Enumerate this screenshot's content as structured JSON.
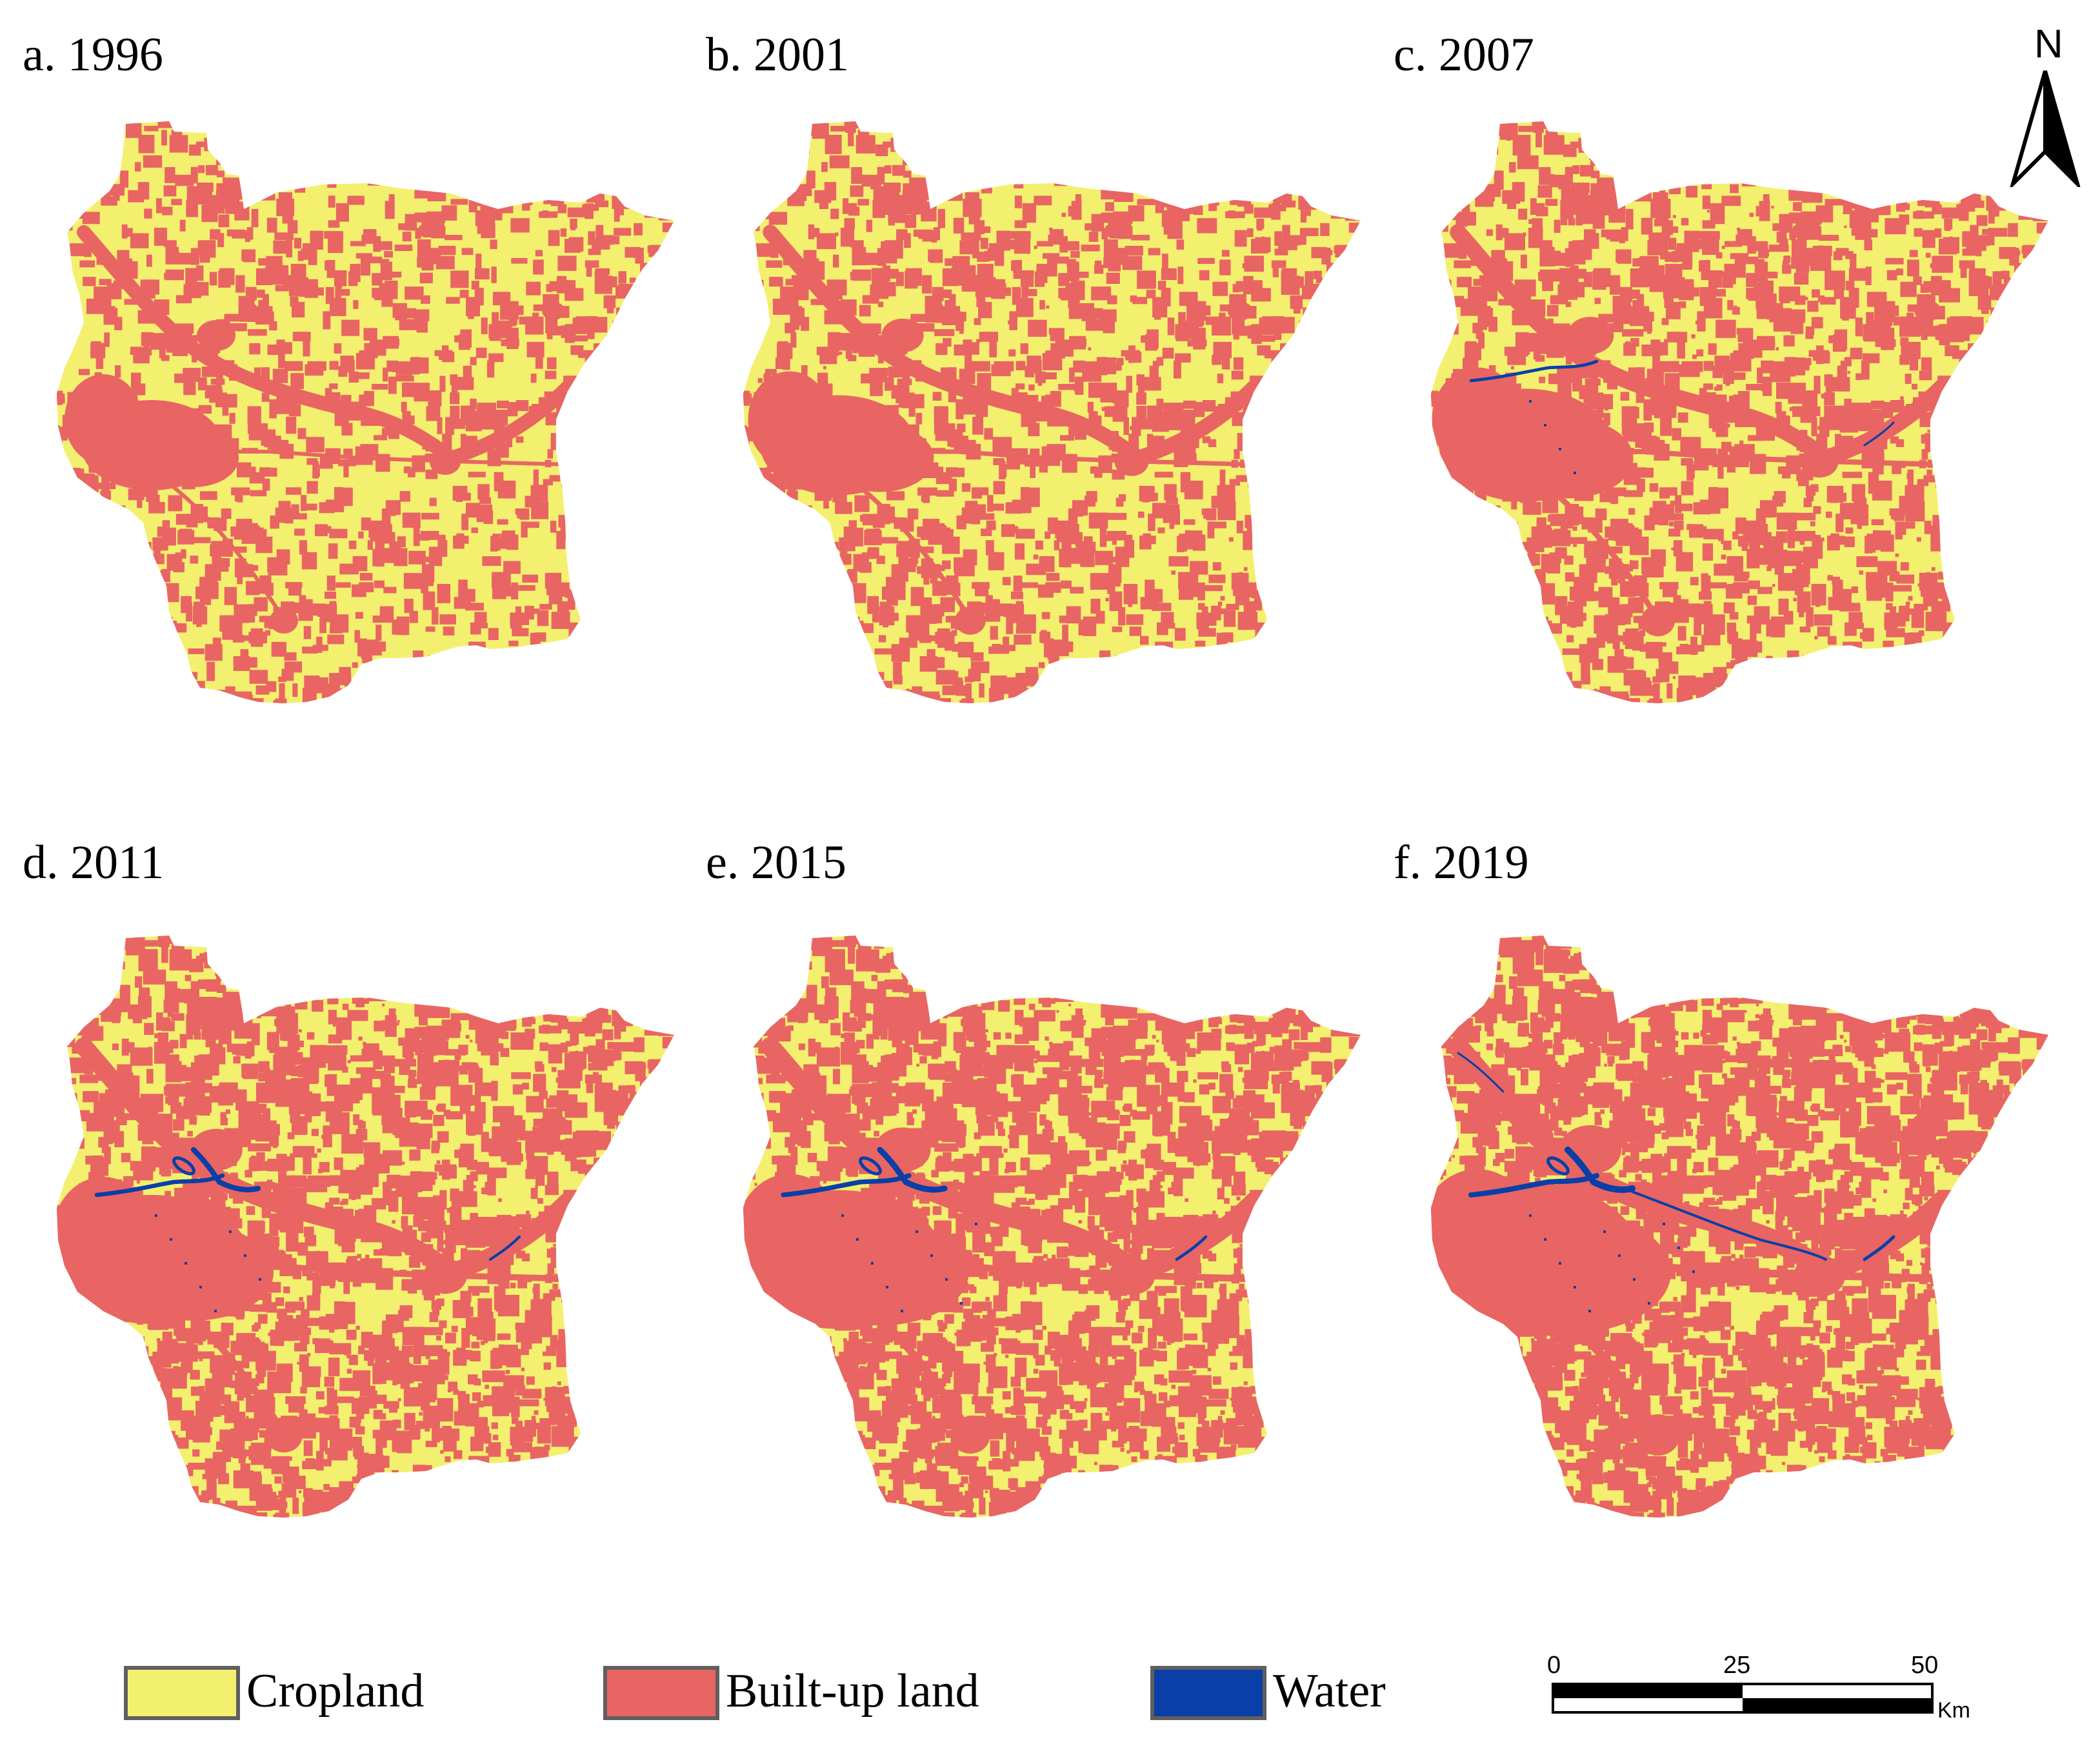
{
  "colors": {
    "cropland": "#f3f06f",
    "builtup": "#e86563",
    "water": "#0a3fa8"
  },
  "panels": [
    {
      "label": "a. 1996",
      "urban_level": 0.0,
      "water_level": 0.0
    },
    {
      "label": "b. 2001",
      "urban_level": 0.15,
      "water_level": 0.0
    },
    {
      "label": "c. 2007",
      "urban_level": 0.35,
      "water_level": 0.35
    },
    {
      "label": "d. 2011",
      "urban_level": 0.6,
      "water_level": 0.7
    },
    {
      "label": "e. 2015",
      "urban_level": 0.75,
      "water_level": 0.85
    },
    {
      "label": "f. 2019",
      "urban_level": 1.0,
      "water_level": 1.0
    }
  ],
  "legend": [
    {
      "label": "Cropland",
      "color_key": "cropland"
    },
    {
      "label": "Built-up land",
      "color_key": "builtup"
    },
    {
      "label": "Water",
      "color_key": "water"
    }
  ],
  "scale_bar": {
    "ticks": [
      "0",
      "25",
      "50"
    ],
    "unit": "Km"
  },
  "north_arrow": {
    "letter": "N"
  }
}
